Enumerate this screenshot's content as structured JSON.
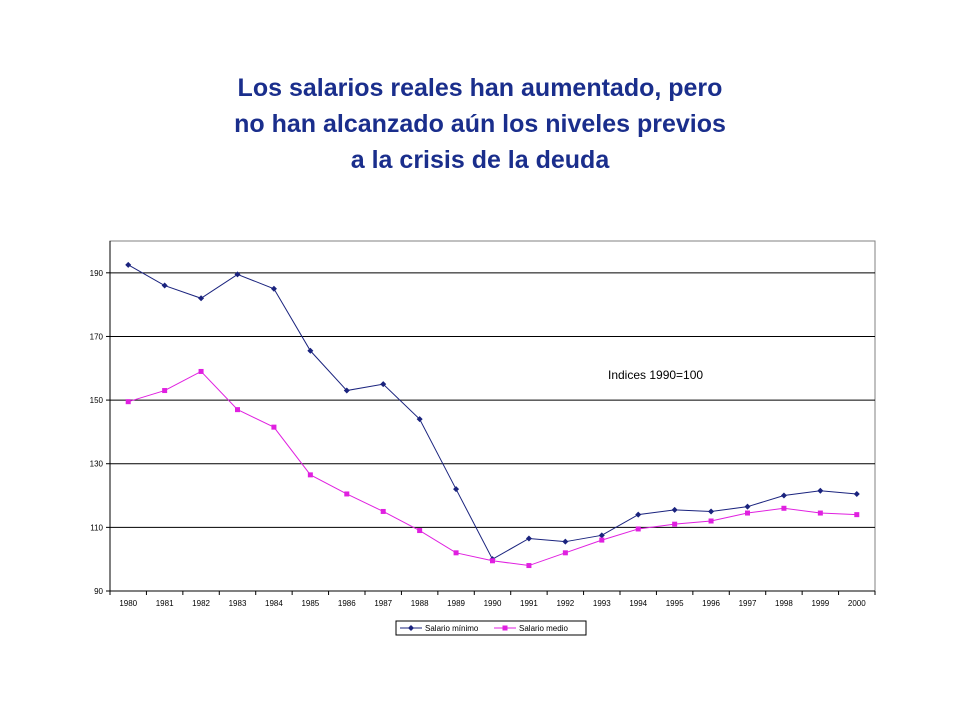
{
  "title_lines": [
    "Los salarios reales han aumentado, pero",
    "no han alcanzado aún los niveles previos",
    "a la crisis de la deuda"
  ],
  "chart_data": {
    "type": "line",
    "title": "",
    "xlabel": "",
    "ylabel": "",
    "ylim": [
      90,
      200
    ],
    "yticks": [
      90,
      110,
      130,
      150,
      170,
      190
    ],
    "grid": true,
    "legend": "bottom",
    "annotation": "Indices 1990=100",
    "x": [
      "1980",
      "1981",
      "1982",
      "1983",
      "1984",
      "1985",
      "1986",
      "1987",
      "1988",
      "1989",
      "1990",
      "1991",
      "1992",
      "1993",
      "1994",
      "1995",
      "1996",
      "1997",
      "1998",
      "1999",
      "2000"
    ],
    "series": [
      {
        "name": "Salario mínimo",
        "color": "#1a237e",
        "marker": "diamond",
        "values": [
          192.5,
          186,
          182,
          189.5,
          185,
          165.5,
          153,
          155,
          144,
          122,
          100,
          106.5,
          105.5,
          107.5,
          114,
          115.5,
          115,
          116.5,
          120,
          121.5,
          120.5
        ]
      },
      {
        "name": "Salario medio",
        "color": "#e020e0",
        "marker": "square",
        "values": [
          149.5,
          153,
          159,
          147,
          141.5,
          126.5,
          120.5,
          115,
          109,
          102,
          99.5,
          98,
          102,
          106,
          109.5,
          111,
          112,
          114.5,
          116,
          114.5,
          114
        ]
      }
    ]
  }
}
